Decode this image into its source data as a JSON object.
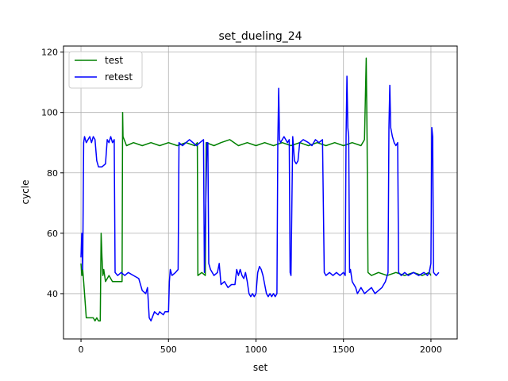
{
  "chart_data": {
    "type": "line",
    "title": "set_dueling_24",
    "xlabel": "set",
    "ylabel": "cycle",
    "xlim": [
      -100,
      2150
    ],
    "ylim": [
      25,
      122
    ],
    "xticks": [
      0,
      500,
      1000,
      1500,
      2000
    ],
    "yticks": [
      40,
      60,
      80,
      100,
      120
    ],
    "grid": true,
    "legend_position": "top-left",
    "series": [
      {
        "name": "test",
        "color": "#008000",
        "points": [
          [
            0,
            50
          ],
          [
            5,
            46
          ],
          [
            10,
            48
          ],
          [
            15,
            44
          ],
          [
            20,
            40
          ],
          [
            25,
            36
          ],
          [
            30,
            32
          ],
          [
            50,
            32
          ],
          [
            70,
            32
          ],
          [
            80,
            31
          ],
          [
            90,
            32
          ],
          [
            100,
            31
          ],
          [
            110,
            31
          ],
          [
            115,
            60
          ],
          [
            120,
            52
          ],
          [
            125,
            46
          ],
          [
            130,
            48
          ],
          [
            140,
            44
          ],
          [
            160,
            46
          ],
          [
            180,
            44
          ],
          [
            200,
            44
          ],
          [
            220,
            44
          ],
          [
            235,
            44
          ],
          [
            238,
            100
          ],
          [
            240,
            92
          ],
          [
            260,
            89
          ],
          [
            300,
            90
          ],
          [
            350,
            89
          ],
          [
            400,
            90
          ],
          [
            450,
            89
          ],
          [
            500,
            90
          ],
          [
            550,
            89
          ],
          [
            600,
            90
          ],
          [
            650,
            89
          ],
          [
            665,
            90
          ],
          [
            668,
            46
          ],
          [
            690,
            47
          ],
          [
            710,
            46
          ],
          [
            715,
            90
          ],
          [
            760,
            89
          ],
          [
            800,
            90
          ],
          [
            850,
            91
          ],
          [
            900,
            89
          ],
          [
            950,
            90
          ],
          [
            1000,
            89
          ],
          [
            1050,
            90
          ],
          [
            1100,
            89
          ],
          [
            1150,
            90
          ],
          [
            1200,
            89
          ],
          [
            1250,
            90
          ],
          [
            1300,
            89
          ],
          [
            1350,
            90
          ],
          [
            1400,
            89
          ],
          [
            1450,
            90
          ],
          [
            1500,
            89
          ],
          [
            1550,
            90
          ],
          [
            1600,
            89
          ],
          [
            1620,
            91
          ],
          [
            1630,
            118
          ],
          [
            1635,
            90
          ],
          [
            1640,
            47
          ],
          [
            1660,
            46
          ],
          [
            1700,
            47
          ],
          [
            1750,
            46
          ],
          [
            1800,
            47
          ],
          [
            1850,
            46
          ],
          [
            1900,
            47
          ],
          [
            1950,
            46
          ],
          [
            1990,
            47
          ],
          [
            2000,
            46
          ]
        ]
      },
      {
        "name": "retest",
        "color": "#0000ff",
        "points": [
          [
            0,
            52
          ],
          [
            5,
            60
          ],
          [
            10,
            48
          ],
          [
            15,
            90
          ],
          [
            20,
            92
          ],
          [
            30,
            90
          ],
          [
            40,
            91
          ],
          [
            50,
            92
          ],
          [
            60,
            90
          ],
          [
            70,
            92
          ],
          [
            80,
            91
          ],
          [
            90,
            84
          ],
          [
            100,
            82
          ],
          [
            120,
            82
          ],
          [
            140,
            83
          ],
          [
            150,
            91
          ],
          [
            160,
            90
          ],
          [
            170,
            92
          ],
          [
            180,
            90
          ],
          [
            190,
            91
          ],
          [
            195,
            47
          ],
          [
            210,
            46
          ],
          [
            230,
            47
          ],
          [
            250,
            46
          ],
          [
            270,
            47
          ],
          [
            300,
            46
          ],
          [
            330,
            45
          ],
          [
            350,
            41
          ],
          [
            370,
            40
          ],
          [
            380,
            42
          ],
          [
            390,
            32
          ],
          [
            400,
            31
          ],
          [
            420,
            34
          ],
          [
            440,
            33
          ],
          [
            450,
            34
          ],
          [
            470,
            33
          ],
          [
            480,
            34
          ],
          [
            500,
            34
          ],
          [
            505,
            44
          ],
          [
            510,
            48
          ],
          [
            520,
            46
          ],
          [
            540,
            47
          ],
          [
            555,
            48
          ],
          [
            560,
            90
          ],
          [
            580,
            89
          ],
          [
            600,
            90
          ],
          [
            620,
            91
          ],
          [
            640,
            90
          ],
          [
            660,
            89
          ],
          [
            680,
            90
          ],
          [
            700,
            91
          ],
          [
            705,
            47
          ],
          [
            720,
            90
          ],
          [
            725,
            90
          ],
          [
            730,
            50
          ],
          [
            740,
            48
          ],
          [
            760,
            46
          ],
          [
            780,
            47
          ],
          [
            790,
            50
          ],
          [
            800,
            43
          ],
          [
            820,
            44
          ],
          [
            840,
            42
          ],
          [
            860,
            43
          ],
          [
            880,
            43
          ],
          [
            890,
            48
          ],
          [
            900,
            46
          ],
          [
            910,
            48
          ],
          [
            920,
            46
          ],
          [
            930,
            45
          ],
          [
            940,
            47
          ],
          [
            950,
            44
          ],
          [
            960,
            40
          ],
          [
            970,
            39
          ],
          [
            980,
            40
          ],
          [
            990,
            39
          ],
          [
            1000,
            40
          ],
          [
            1010,
            47
          ],
          [
            1020,
            49
          ],
          [
            1030,
            48
          ],
          [
            1040,
            46
          ],
          [
            1050,
            43
          ],
          [
            1060,
            40
          ],
          [
            1070,
            39
          ],
          [
            1080,
            40
          ],
          [
            1090,
            39
          ],
          [
            1100,
            40
          ],
          [
            1110,
            39
          ],
          [
            1120,
            40
          ],
          [
            1125,
            90
          ],
          [
            1130,
            108
          ],
          [
            1135,
            91
          ],
          [
            1140,
            90
          ],
          [
            1160,
            92
          ],
          [
            1180,
            90
          ],
          [
            1190,
            91
          ],
          [
            1195,
            47
          ],
          [
            1200,
            46
          ],
          [
            1210,
            92
          ],
          [
            1220,
            84
          ],
          [
            1230,
            83
          ],
          [
            1240,
            84
          ],
          [
            1250,
            90
          ],
          [
            1270,
            91
          ],
          [
            1300,
            90
          ],
          [
            1320,
            89
          ],
          [
            1340,
            91
          ],
          [
            1360,
            90
          ],
          [
            1380,
            91
          ],
          [
            1390,
            47
          ],
          [
            1400,
            46
          ],
          [
            1420,
            47
          ],
          [
            1440,
            46
          ],
          [
            1460,
            47
          ],
          [
            1480,
            46
          ],
          [
            1500,
            47
          ],
          [
            1510,
            46
          ],
          [
            1515,
            92
          ],
          [
            1520,
            112
          ],
          [
            1525,
            95
          ],
          [
            1530,
            92
          ],
          [
            1535,
            47
          ],
          [
            1540,
            48
          ],
          [
            1550,
            44
          ],
          [
            1570,
            42
          ],
          [
            1580,
            40
          ],
          [
            1600,
            42
          ],
          [
            1620,
            40
          ],
          [
            1640,
            41
          ],
          [
            1660,
            42
          ],
          [
            1680,
            40
          ],
          [
            1700,
            41
          ],
          [
            1720,
            42
          ],
          [
            1740,
            44
          ],
          [
            1755,
            47
          ],
          [
            1760,
            95
          ],
          [
            1765,
            109
          ],
          [
            1770,
            95
          ],
          [
            1780,
            92
          ],
          [
            1790,
            90
          ],
          [
            1800,
            89
          ],
          [
            1810,
            90
          ],
          [
            1815,
            47
          ],
          [
            1830,
            46
          ],
          [
            1850,
            47
          ],
          [
            1870,
            46
          ],
          [
            1900,
            47
          ],
          [
            1930,
            46
          ],
          [
            1960,
            47
          ],
          [
            1980,
            46
          ],
          [
            1990,
            47
          ],
          [
            2000,
            50
          ],
          [
            2005,
            95
          ],
          [
            2010,
            92
          ],
          [
            2015,
            47
          ],
          [
            2030,
            46
          ],
          [
            2045,
            47
          ]
        ]
      }
    ]
  }
}
